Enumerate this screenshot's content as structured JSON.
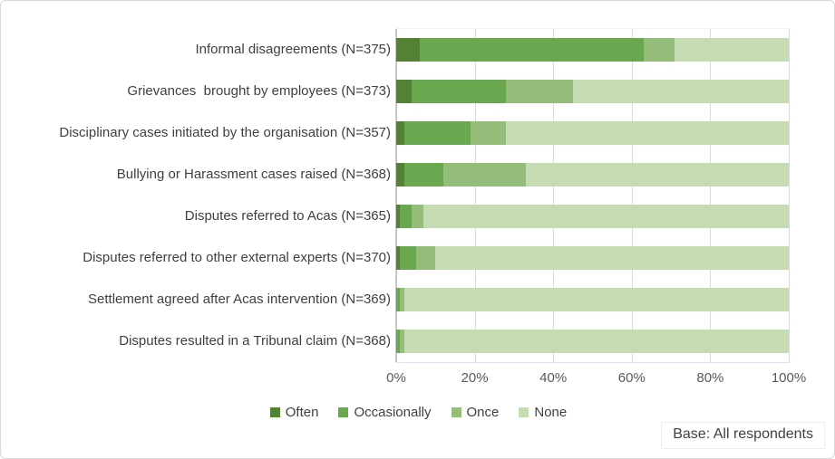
{
  "chart_data": {
    "type": "bar",
    "orientation": "horizontal",
    "stacked": true,
    "unit": "percent",
    "categories": [
      "Informal disagreements (N=375)",
      "Grievances  brought by employees (N=373)",
      "Disciplinary cases initiated by the organisation (N=357)",
      "Bullying or Harassment cases raised (N=368)",
      "Disputes referred to Acas (N=365)",
      "Disputes referred to other external experts (N=370)",
      "Settlement agreed after Acas intervention (N=369)",
      "Disputes resulted in a Tribunal claim (N=368)"
    ],
    "series": [
      {
        "name": "Often",
        "color": "#548235",
        "values": [
          6,
          4,
          2,
          2,
          1,
          1,
          0,
          0
        ]
      },
      {
        "name": "Occasionally",
        "color": "#6aa84f",
        "values": [
          57,
          24,
          17,
          10,
          3,
          4,
          1,
          1
        ]
      },
      {
        "name": "Once",
        "color": "#93bd79",
        "values": [
          8,
          17,
          9,
          21,
          3,
          5,
          1,
          1
        ]
      },
      {
        "name": "None",
        "color": "#c5dcb2",
        "values": [
          29,
          55,
          72,
          67,
          93,
          90,
          98,
          98
        ]
      }
    ],
    "x_axis": {
      "min": 0,
      "max": 100,
      "ticks": [
        "0%",
        "20%",
        "40%",
        "60%",
        "80%",
        "100%"
      ]
    },
    "grid": true,
    "legend_position": "bottom",
    "colors": {
      "gridline": "#d9d9d9",
      "axis_line": "#c6c6c6",
      "category_label": "#404040",
      "tick_label": "#595959"
    }
  },
  "footer": {
    "base_note": "Base: All respondents"
  }
}
